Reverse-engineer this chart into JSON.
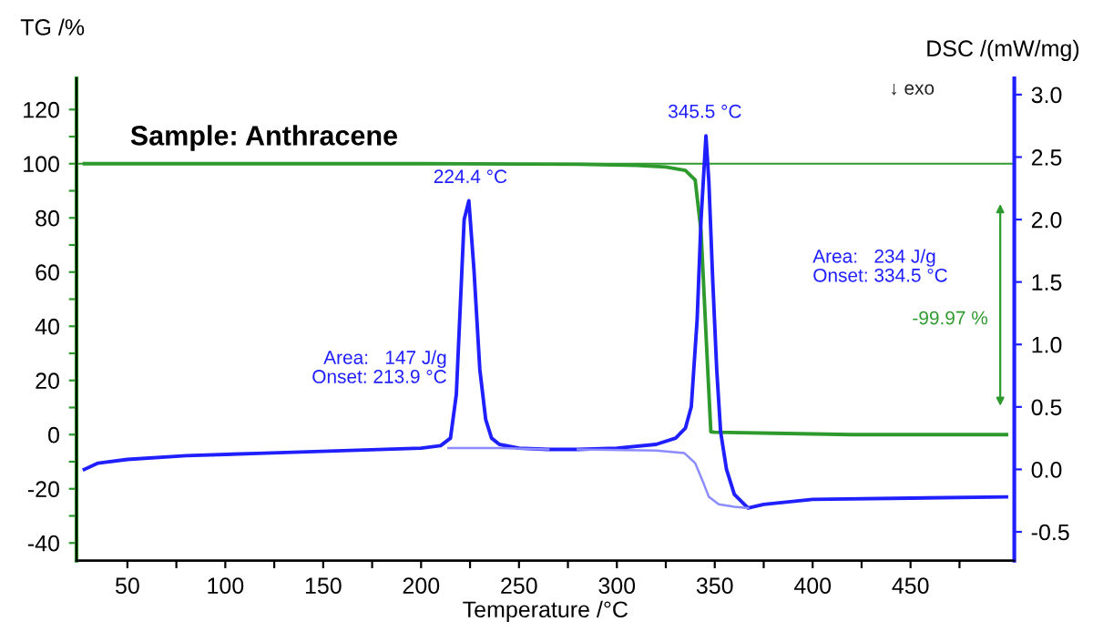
{
  "chart_data": {
    "type": "line",
    "title": "Sample: Anthracene",
    "xlabel": "Temperature /°C",
    "ylabel": "TG /%",
    "y2label": "DSC /(mW/mg)",
    "xlim": [
      24,
      503
    ],
    "xticks": [
      50,
      {
        "value": 75,
        "label": null
      },
      100,
      {
        "value": 125,
        "label": null
      },
      150,
      {
        "value": 175,
        "label": null
      },
      200,
      {
        "value": 225,
        "label": null
      },
      250,
      {
        "value": 275,
        "label": null
      },
      300,
      {
        "value": 325,
        "label": null
      },
      350,
      {
        "value": 375,
        "label": null
      },
      400,
      {
        "value": 425,
        "label": null
      },
      450,
      {
        "value": 475,
        "label": null
      }
    ],
    "ylim": [
      -46.5,
      131.5
    ],
    "yticks": [
      -40,
      {
        "value": -30,
        "label": null
      },
      -20,
      {
        "value": -10,
        "label": null
      },
      0,
      {
        "value": 10,
        "label": null
      },
      20,
      {
        "value": 30,
        "label": null
      },
      40,
      {
        "value": 50,
        "label": null
      },
      60,
      {
        "value": 70,
        "label": null
      },
      80,
      {
        "value": 90,
        "label": null
      },
      100,
      {
        "value": 110,
        "label": null
      },
      120
    ],
    "y2lim": [
      -0.73,
      3.13
    ],
    "y2ticks": [
      {
        "value": -0.5,
        "label": "-0.5"
      },
      {
        "value": 0,
        "label": "0.0"
      },
      {
        "value": 0.5,
        "label": "0.5"
      },
      {
        "value": 1,
        "label": "1.0"
      },
      {
        "value": 1.5,
        "label": "1.5"
      },
      {
        "value": 2,
        "label": "2.0"
      },
      {
        "value": 2.5,
        "label": "2.5"
      },
      {
        "value": 3,
        "label": "3.0"
      }
    ],
    "series": [
      {
        "color": "#2e9a2e",
        "x": [
          28,
          100,
          200,
          280,
          310,
          325,
          335,
          340,
          343,
          346,
          348,
          350,
          380,
          420,
          499
        ],
        "values": [
          100,
          100,
          100,
          99.8,
          99.4,
          98.8,
          97.5,
          94,
          75,
          30,
          1,
          0.9,
          0.5,
          0,
          0
        ]
      },
      {
        "color": "#1f1fff",
        "axis": "y2",
        "x": [
          28,
          35,
          50,
          80,
          120,
          160,
          200,
          210,
          215,
          218,
          220,
          222,
          224.4,
          227,
          230,
          233,
          236,
          240,
          250,
          265,
          280,
          300,
          320,
          330,
          335,
          338,
          341,
          343,
          345.5,
          347,
          349,
          351,
          353,
          356,
          360,
          367,
          375,
          400,
          450,
          499
        ],
        "values": [
          0.0,
          0.05,
          0.08,
          0.11,
          0.13,
          0.15,
          0.17,
          0.19,
          0.25,
          0.6,
          1.3,
          2.0,
          2.15,
          1.6,
          0.8,
          0.4,
          0.25,
          0.2,
          0.17,
          0.16,
          0.16,
          0.17,
          0.2,
          0.25,
          0.33,
          0.5,
          1.2,
          2.0,
          2.67,
          2.3,
          1.5,
          0.8,
          0.3,
          0.0,
          -0.2,
          -0.31,
          -0.28,
          -0.24,
          -0.23,
          -0.22
        ]
      },
      {
        "color": "#8c8cff",
        "axis": "y2",
        "x": [
          213.9,
          240,
          265
        ],
        "values": [
          0.17,
          0.17,
          0.16
        ]
      },
      {
        "color": "#8c8cff",
        "axis": "y2",
        "x": [
          280,
          320,
          334.5,
          340,
          344,
          347,
          352,
          360,
          367
        ],
        "values": [
          0.16,
          0.15,
          0.13,
          0.05,
          -0.1,
          -0.22,
          -0.28,
          -0.3,
          -0.31
        ]
      }
    ],
    "ref_lines": [
      {
        "axis": "y",
        "value": 100,
        "color": "#2e9a2e"
      }
    ],
    "annotations": [
      "224.4 °C",
      "345.5 °C",
      "Area:   147 J/g\nOnset: 213.9 °C",
      "Area:   234 J/g\nOnset: 334.5 °C",
      "-99.97 %",
      "↓ exo"
    ],
    "grid": false
  }
}
